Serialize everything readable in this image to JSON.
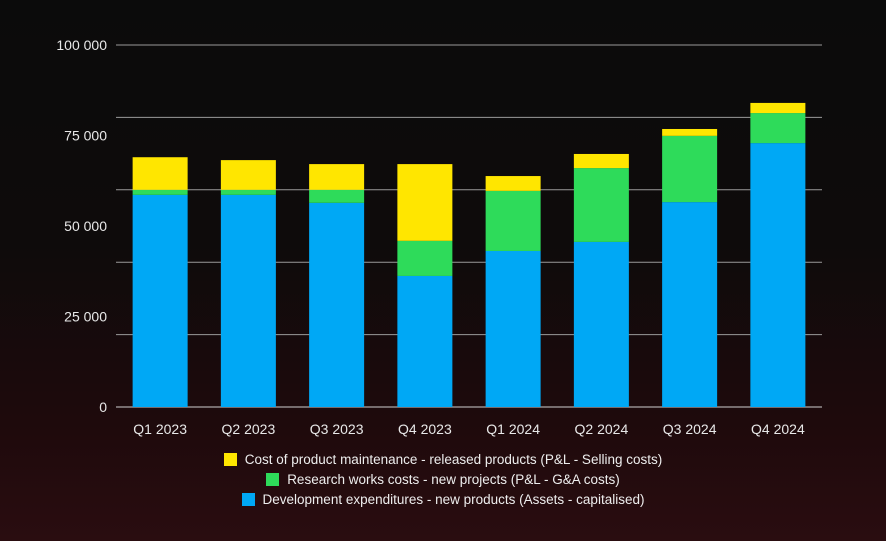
{
  "chart_data": {
    "type": "bar",
    "stacked": true,
    "title": "",
    "xlabel": "",
    "ylabel": "",
    "ylim": [
      0,
      100000
    ],
    "yticks": [
      0,
      25000,
      50000,
      75000,
      100000
    ],
    "ytick_labels": [
      "0",
      "25 000",
      "50 000",
      "75 000",
      "100 000"
    ],
    "gridlines": [
      0,
      20000,
      40000,
      60000,
      80000,
      100000
    ],
    "categories": [
      "Q1 2023",
      "Q2 2023",
      "Q3 2023",
      "Q4 2023",
      "Q1 2024",
      "Q2 2024",
      "Q3 2024",
      "Q4 2024"
    ],
    "series": [
      {
        "name": "Development expenditures - new products (Assets - capitalised)",
        "color": "#00a8f5",
        "values": [
          58600,
          58600,
          56400,
          36200,
          43100,
          45600,
          56600,
          72900
        ]
      },
      {
        "name": "Research works costs - new projects (P&L - G&A costs)",
        "color": "#2edb5a",
        "values": [
          1400,
          1400,
          3600,
          9700,
          16600,
          20400,
          18300,
          8300
        ]
      },
      {
        "name": "Cost of product maintenance - released products (P&L - Selling costs)",
        "color": "#ffe600",
        "values": [
          9000,
          8200,
          7100,
          21200,
          4100,
          3900,
          1900,
          2800
        ]
      }
    ],
    "legend_order": [
      2,
      1,
      0
    ],
    "legend_position": "bottom"
  }
}
